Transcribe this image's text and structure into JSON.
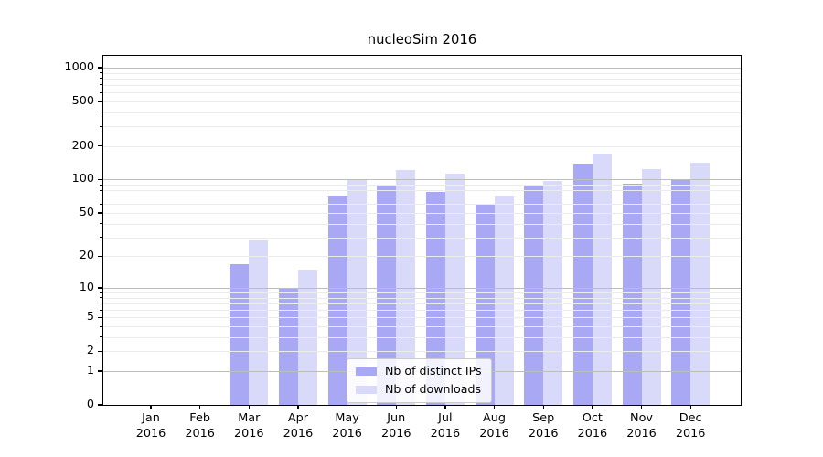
{
  "title": "nucleoSim 2016",
  "chart_data": {
    "type": "bar",
    "title": "nucleoSim 2016",
    "x_year": "2016",
    "categories": [
      "Jan",
      "Feb",
      "Mar",
      "Apr",
      "May",
      "Jun",
      "Jul",
      "Aug",
      "Sep",
      "Oct",
      "Nov",
      "Dec"
    ],
    "series": [
      {
        "name": "Nb of distinct IPs",
        "color": "#a8a8f5",
        "values": [
          0,
          0,
          17,
          10,
          72,
          90,
          78,
          61,
          88,
          140,
          91,
          100
        ]
      },
      {
        "name": "Nb of downloads",
        "color": "#d9d9fa",
        "values": [
          0,
          0,
          28,
          15,
          100,
          122,
          112,
          72,
          97,
          170,
          124,
          142
        ]
      }
    ],
    "y_scale": "log-like (y proportional to log10(1+value), 0 at baseline)",
    "y_ticks_major": [
      0,
      1,
      2,
      5,
      10,
      20,
      50,
      100,
      200,
      500,
      1000
    ],
    "y_gridlines_major": [
      1,
      10,
      100,
      1000
    ],
    "y_gridlines_minor": [
      2,
      3,
      4,
      5,
      6,
      7,
      8,
      9,
      20,
      30,
      40,
      50,
      60,
      70,
      80,
      90,
      200,
      300,
      400,
      500,
      600,
      700,
      800,
      900
    ],
    "ylim": [
      0,
      1276
    ],
    "grid": true,
    "legend_position": "lower center"
  }
}
